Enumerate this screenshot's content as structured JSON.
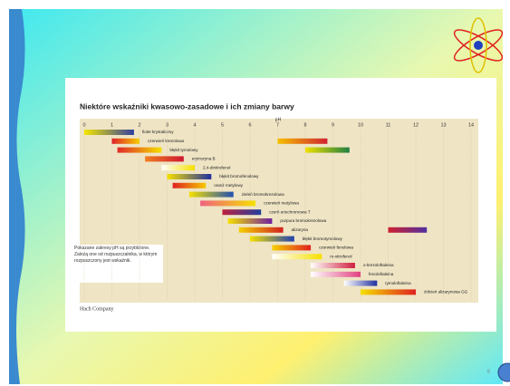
{
  "chart_data": {
    "type": "range",
    "title": "Niektóre wskaźniki kwasowo-zasadowe i ich zmiany barwy",
    "xlabel": "pH",
    "xlim": [
      0,
      14
    ],
    "xticks": [
      0,
      1,
      2,
      3,
      4,
      5,
      6,
      7,
      8,
      9,
      10,
      11,
      12,
      13,
      14
    ],
    "categories": [
      "fiolet krystaliczny",
      "czerwień krezolowa",
      "błękit tymolowy",
      "erytrozyna B",
      "2,4-dinitrofenol",
      "błękit bromofenolowy",
      "oranż metylowy",
      "zieleń bromokrezolowa",
      "czerwień metylowa",
      "czerń eriochromowa T",
      "purpura bromokrezolowa",
      "alizaryna",
      "błękit bromotymolowy",
      "czerwień fenolowa",
      "m-nitrofenol",
      "o-krezoloftaleina",
      "fenoloftaleina",
      "tymoloftaleina",
      "żółcień alizarynowa GG"
    ],
    "ranges": [
      [
        {
          "range": [
            0.0,
            1.8
          ],
          "colors": [
            "#f5e600",
            "#3040a0"
          ]
        }
      ],
      [
        {
          "range": [
            1.0,
            2.0
          ],
          "colors": [
            "#e0202a",
            "#f5d000"
          ]
        },
        {
          "range": [
            7.0,
            8.8
          ],
          "colors": [
            "#f5c000",
            "#d02030"
          ]
        }
      ],
      [
        {
          "range": [
            1.2,
            2.8
          ],
          "colors": [
            "#e02828",
            "#f5e000"
          ]
        },
        {
          "range": [
            8.0,
            9.6
          ],
          "colors": [
            "#f0e000",
            "#208040"
          ]
        }
      ],
      [
        {
          "range": [
            2.2,
            3.6
          ],
          "colors": [
            "#f08020",
            "#d01830"
          ]
        }
      ],
      [
        {
          "range": [
            2.8,
            4.0
          ],
          "colors": [
            "#ffffff",
            "#f5e000"
          ]
        }
      ],
      [
        {
          "range": [
            3.0,
            4.6
          ],
          "colors": [
            "#f5e000",
            "#2030a0"
          ]
        }
      ],
      [
        {
          "range": [
            3.2,
            4.4
          ],
          "colors": [
            "#e02020",
            "#f5c800"
          ]
        }
      ],
      [
        {
          "range": [
            3.8,
            5.4
          ],
          "colors": [
            "#f5e000",
            "#2050b0"
          ]
        }
      ],
      [
        {
          "range": [
            4.2,
            6.2
          ],
          "colors": [
            "#f06080",
            "#f5e000"
          ]
        }
      ],
      [
        {
          "range": [
            5.0,
            6.4
          ],
          "colors": [
            "#c02040",
            "#2040a0"
          ]
        }
      ],
      [
        {
          "range": [
            5.2,
            6.8
          ],
          "colors": [
            "#f5e000",
            "#7020a0"
          ]
        }
      ],
      [
        {
          "range": [
            5.6,
            7.2
          ],
          "colors": [
            "#f5d000",
            "#d02020"
          ]
        },
        {
          "range": [
            11.0,
            12.4
          ],
          "colors": [
            "#d02030",
            "#5030a0"
          ]
        }
      ],
      [
        {
          "range": [
            6.0,
            7.6
          ],
          "colors": [
            "#f5e000",
            "#2040b0"
          ]
        }
      ],
      [
        {
          "range": [
            6.8,
            8.2
          ],
          "colors": [
            "#f5d000",
            "#e02020"
          ]
        }
      ],
      [
        {
          "range": [
            6.8,
            8.6
          ],
          "colors": [
            "#ffffff",
            "#f5e000"
          ]
        }
      ],
      [
        {
          "range": [
            8.2,
            9.8
          ],
          "colors": [
            "#ffffff",
            "#d02040"
          ]
        }
      ],
      [
        {
          "range": [
            8.2,
            10.0
          ],
          "colors": [
            "#ffffff",
            "#e04080"
          ]
        }
      ],
      [
        {
          "range": [
            9.4,
            10.6
          ],
          "colors": [
            "#ffffff",
            "#2030a0"
          ]
        }
      ],
      [
        {
          "range": [
            10.0,
            12.0
          ],
          "colors": [
            "#f5e000",
            "#e02020"
          ]
        }
      ]
    ],
    "note": "Pokazane zakresy pH są przybliżone. Zależą one od rozpuszczalnika, w którym rozpuszczony jest wskaźnik.",
    "source": "Hach Company",
    "page_number": "8"
  }
}
